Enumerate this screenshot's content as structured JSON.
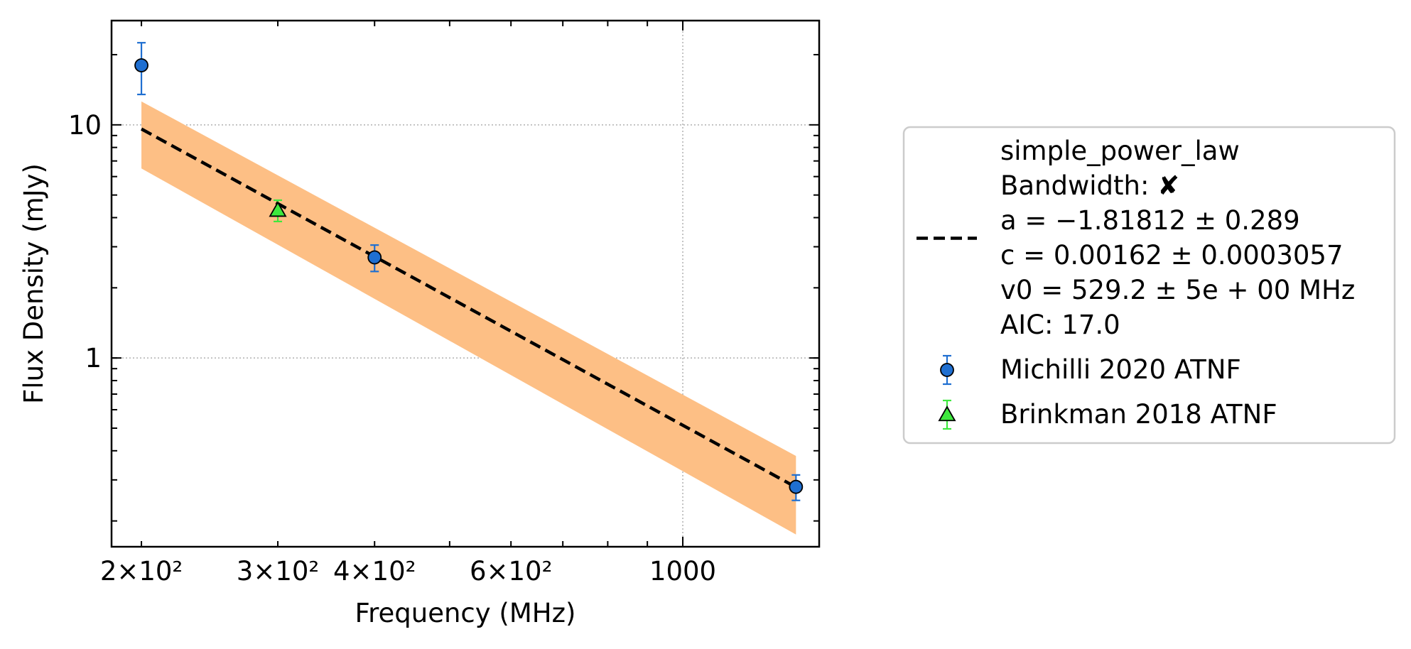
{
  "chart_data": {
    "type": "scatter",
    "title": "",
    "xlabel": "Frequency (MHz)",
    "ylabel": "Flux Density (mJy)",
    "x_scale": "log",
    "y_scale": "log",
    "xlim": [
      183,
      1500
    ],
    "ylim": [
      0.155,
      28
    ],
    "grid": true,
    "legend_position": "outside right",
    "x_ticks": [
      {
        "value": 200,
        "label": "2×10²"
      },
      {
        "value": 300,
        "label": "3×10²"
      },
      {
        "value": 400,
        "label": "4×10²"
      },
      {
        "value": 600,
        "label": "6×10²"
      },
      {
        "value": 1000,
        "label": "1000"
      }
    ],
    "y_ticks": [
      {
        "value": 1,
        "label": "1"
      },
      {
        "value": 10,
        "label": "10"
      }
    ],
    "fit": {
      "label_lines": [
        "simple_power_law",
        "Bandwidth: ✘",
        "a = −1.81812 ± 0.289",
        "c = 0.00162 ± 0.0003057",
        "v0 = 529.2 ± 5e + 00 MHz",
        "AIC: 17.0"
      ],
      "a": -1.81812,
      "c": 0.00162,
      "v0": 529.2,
      "x_range": [
        200,
        1400
      ],
      "line_color": "#000000",
      "band_color": "#fdbf85",
      "band": {
        "x": [
          200,
          1400
        ],
        "lower": [
          6.5,
          0.175
        ],
        "upper": [
          12.6,
          0.38
        ]
      }
    },
    "series": [
      {
        "name": "Michilli 2020 ATNF",
        "marker": "circle",
        "color": "#1f6fd1",
        "error_color": "#1f6fd1",
        "points": [
          {
            "x": 200,
            "y": 18.0,
            "ylow": 13.5,
            "yhigh": 22.5
          },
          {
            "x": 400,
            "y": 2.7,
            "ylow": 2.35,
            "yhigh": 3.05
          },
          {
            "x": 1400,
            "y": 0.28,
            "ylow": 0.245,
            "yhigh": 0.315
          }
        ]
      },
      {
        "name": "Brinkman 2018 ATNF",
        "marker": "triangle",
        "color": "#3ee83e",
        "error_color": "#3ee83e",
        "points": [
          {
            "x": 300,
            "y": 4.3,
            "ylow": 3.85,
            "yhigh": 4.75
          }
        ]
      }
    ]
  }
}
